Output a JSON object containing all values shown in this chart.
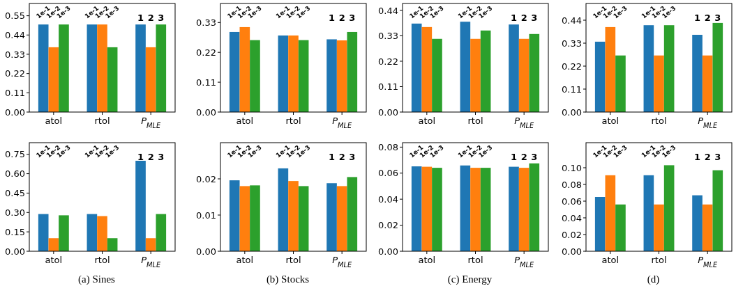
{
  "chart_data": [
    {
      "type": "bar",
      "categories": [
        "atol",
        "rtol",
        "P$_{MLE}$"
      ],
      "ylim": [
        0,
        0.62
      ],
      "yticks": [
        {
          "value": 0,
          "label": "0.00"
        },
        {
          "value": 0.11,
          "label": "0.11"
        },
        {
          "value": 0.22,
          "label": "0.22"
        },
        {
          "value": 0.33,
          "label": "0.33"
        },
        {
          "value": 0.44,
          "label": "0.44"
        },
        {
          "value": 0.55,
          "label": "0.55"
        }
      ],
      "series": [
        {
          "color": "#1f77b4",
          "values": [
            0.5,
            0.5,
            0.5
          ]
        },
        {
          "color": "#ff7f0e",
          "values": [
            0.37,
            0.5,
            0.37
          ]
        },
        {
          "color": "#2ca02c",
          "values": [
            0.5,
            0.37,
            0.5
          ]
        }
      ],
      "annotations": [
        "1e-1",
        "1e-2",
        "1e-3",
        "1e-1",
        "1e-2",
        "1e-3",
        "1",
        "2",
        "3"
      ]
    },
    {
      "type": "bar",
      "categories": [
        "atol",
        "rtol",
        "P$_{MLE}$"
      ],
      "ylim": [
        0,
        0.4
      ],
      "yticks": [
        {
          "value": 0,
          "label": "0.00"
        },
        {
          "value": 0.11,
          "label": "0.11"
        },
        {
          "value": 0.22,
          "label": "0.22"
        },
        {
          "value": 0.33,
          "label": "0.33"
        }
      ],
      "series": [
        {
          "color": "#1f77b4",
          "values": [
            0.295,
            0.282,
            0.268
          ]
        },
        {
          "color": "#ff7f0e",
          "values": [
            0.313,
            0.282,
            0.264
          ]
        },
        {
          "color": "#2ca02c",
          "values": [
            0.265,
            0.265,
            0.295
          ]
        }
      ],
      "annotations": [
        "1e-1",
        "1e-2",
        "1e-3",
        "1e-1",
        "1e-2",
        "1e-3",
        "1",
        "2",
        "3"
      ]
    },
    {
      "type": "bar",
      "categories": [
        "atol",
        "rtol",
        "P$_{MLE}$"
      ],
      "ylim": [
        0,
        0.47
      ],
      "yticks": [
        {
          "value": 0,
          "label": "0.00"
        },
        {
          "value": 0.11,
          "label": "0.11"
        },
        {
          "value": 0.22,
          "label": "0.22"
        },
        {
          "value": 0.33,
          "label": "0.33"
        },
        {
          "value": 0.44,
          "label": "0.44"
        }
      ],
      "series": [
        {
          "color": "#1f77b4",
          "values": [
            0.383,
            0.391,
            0.379
          ]
        },
        {
          "color": "#ff7f0e",
          "values": [
            0.368,
            0.317,
            0.317
          ]
        },
        {
          "color": "#2ca02c",
          "values": [
            0.317,
            0.353,
            0.338
          ]
        }
      ],
      "annotations": [
        "1e-1",
        "1e-2",
        "1e-3",
        "1e-1",
        "1e-2",
        "1e-3",
        "1",
        "2",
        "3"
      ]
    },
    {
      "type": "bar",
      "categories": [
        "atol",
        "rtol",
        "P$_{MLE}$"
      ],
      "ylim": [
        0,
        0.52
      ],
      "yticks": [
        {
          "value": 0,
          "label": "0.00"
        },
        {
          "value": 0.11,
          "label": "0.11"
        },
        {
          "value": 0.22,
          "label": "0.22"
        },
        {
          "value": 0.33,
          "label": "0.33"
        },
        {
          "value": 0.44,
          "label": "0.44"
        }
      ],
      "series": [
        {
          "color": "#1f77b4",
          "values": [
            0.337,
            0.416,
            0.37
          ]
        },
        {
          "color": "#ff7f0e",
          "values": [
            0.407,
            0.271,
            0.271
          ]
        },
        {
          "color": "#2ca02c",
          "values": [
            0.271,
            0.416,
            0.427
          ]
        }
      ],
      "annotations": [
        "1e-1",
        "1e-2",
        "1e-3",
        "1e-1",
        "1e-2",
        "1e-3",
        "1",
        "2",
        "3"
      ]
    },
    {
      "type": "bar",
      "categories": [
        "atol",
        "rtol",
        "P$_{MLE}$"
      ],
      "ylim": [
        0,
        0.84
      ],
      "yticks": [
        {
          "value": 0,
          "label": "0.00"
        },
        {
          "value": 0.15,
          "label": "0.15"
        },
        {
          "value": 0.3,
          "label": "0.30"
        },
        {
          "value": 0.45,
          "label": "0.45"
        },
        {
          "value": 0.6,
          "label": "0.60"
        },
        {
          "value": 0.75,
          "label": "0.75"
        }
      ],
      "series": [
        {
          "color": "#1f77b4",
          "values": [
            0.288,
            0.288,
            0.7
          ]
        },
        {
          "color": "#ff7f0e",
          "values": [
            0.101,
            0.272,
            0.101
          ]
        },
        {
          "color": "#2ca02c",
          "values": [
            0.278,
            0.101,
            0.288
          ]
        }
      ],
      "xlabel": "(a) Sines",
      "annotations": [
        "1e-1",
        "1e-2",
        "1e-3",
        "1e-1",
        "1e-2",
        "1e-3",
        "1",
        "2",
        "3"
      ]
    },
    {
      "type": "bar",
      "categories": [
        "atol",
        "rtol",
        "P$_{MLE}$"
      ],
      "ylim": [
        0,
        0.03
      ],
      "yticks": [
        {
          "value": 0,
          "label": "0.00"
        },
        {
          "value": 0.01,
          "label": "0.01"
        },
        {
          "value": 0.02,
          "label": "0.02"
        }
      ],
      "series": [
        {
          "color": "#1f77b4",
          "values": [
            0.0196,
            0.0229,
            0.0188
          ]
        },
        {
          "color": "#ff7f0e",
          "values": [
            0.018,
            0.0194,
            0.018
          ]
        },
        {
          "color": "#2ca02c",
          "values": [
            0.0182,
            0.018,
            0.0205
          ]
        }
      ],
      "xlabel": "(b) Stocks",
      "annotations": [
        "1e-1",
        "1e-2",
        "1e-3",
        "1e-1",
        "1e-2",
        "1e-3",
        "1",
        "2",
        "3"
      ]
    },
    {
      "type": "bar",
      "categories": [
        "atol",
        "rtol",
        "P$_{MLE}$"
      ],
      "ylim": [
        0,
        0.0834
      ],
      "yticks": [
        {
          "value": 0,
          "label": "0.00"
        },
        {
          "value": 0.02,
          "label": "0.02"
        },
        {
          "value": 0.04,
          "label": "0.04"
        },
        {
          "value": 0.06,
          "label": "0.06"
        },
        {
          "value": 0.08,
          "label": "0.08"
        }
      ],
      "series": [
        {
          "color": "#1f77b4",
          "values": [
            0.0652,
            0.0659,
            0.0649
          ]
        },
        {
          "color": "#ff7f0e",
          "values": [
            0.0649,
            0.0641,
            0.0641
          ]
        },
        {
          "color": "#2ca02c",
          "values": [
            0.0641,
            0.0641,
            0.0675
          ]
        }
      ],
      "xlabel": "(c) Energy",
      "annotations": [
        "1e-1",
        "1e-2",
        "1e-3",
        "1e-1",
        "1e-2",
        "1e-3",
        "1",
        "2",
        "3"
      ]
    },
    {
      "type": "bar",
      "categories": [
        "atol",
        "rtol",
        "P$_{MLE}$"
      ],
      "ylim": [
        0,
        0.13
      ],
      "yticks": [
        {
          "value": 0,
          "label": "0.00"
        },
        {
          "value": 0.02,
          "label": "0.02"
        },
        {
          "value": 0.04,
          "label": "0.04"
        },
        {
          "value": 0.06,
          "label": "0.06"
        },
        {
          "value": 0.08,
          "label": "0.08"
        },
        {
          "value": 0.1,
          "label": "0.10"
        }
      ],
      "series": [
        {
          "color": "#1f77b4",
          "values": [
            0.065,
            0.091,
            0.067
          ]
        },
        {
          "color": "#ff7f0e",
          "values": [
            0.091,
            0.056,
            0.056
          ]
        },
        {
          "color": "#2ca02c",
          "values": [
            0.056,
            0.103,
            0.097
          ]
        }
      ],
      "xlabel": "(d)",
      "annotations": [
        "1e-1",
        "1e-2",
        "1e-3",
        "1e-1",
        "1e-2",
        "1e-3",
        "1",
        "2",
        "3"
      ]
    }
  ]
}
